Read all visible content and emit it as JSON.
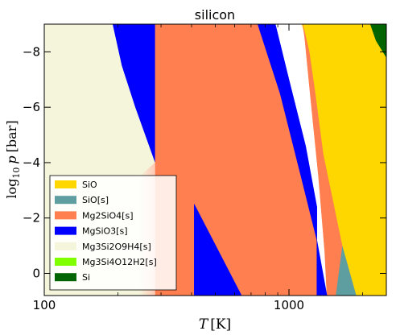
{
  "chart_data": {
    "type": "area",
    "title": "silicon",
    "xlabel": "T [K]",
    "ylabel": "log10 p [bar]",
    "x_scale": "log",
    "xlim": [
      100,
      2500
    ],
    "ylim": [
      0.8,
      -9.0
    ],
    "x_ticks": [
      {
        "value": 100,
        "label": "100"
      },
      {
        "value": 1000,
        "label": "1000"
      }
    ],
    "y_ticks": [
      {
        "value": -8,
        "label": "−8"
      },
      {
        "value": -6,
        "label": "−6"
      },
      {
        "value": -4,
        "label": "−4"
      },
      {
        "value": -2,
        "label": "−2"
      },
      {
        "value": 0,
        "label": "0"
      }
    ],
    "legend_position": "lower-left",
    "series": [
      {
        "name": "SiO",
        "color": "#FFD700"
      },
      {
        "name": "SiO[s]",
        "color": "#5F9EA0"
      },
      {
        "name": "Mg2SiO4[s]",
        "color": "#FF7F50"
      },
      {
        "name": "MgSiO3[s]",
        "color": "#0000FF"
      },
      {
        "name": "Mg3Si2O9H4[s]",
        "color": "#F5F5DC"
      },
      {
        "name": "Mg3Si4O12H2[s]",
        "color": "#7FFF00"
      },
      {
        "name": "Si",
        "color": "#006400"
      }
    ],
    "regions": [
      {
        "series": "SiO",
        "points": [
          [
            1130,
            -9
          ],
          [
            2500,
            -9
          ],
          [
            2500,
            0.8
          ],
          [
            1880,
            0.8
          ],
          [
            1650,
            -1.0
          ],
          [
            1380,
            -4.3
          ],
          [
            1280,
            -6.5
          ],
          [
            1210,
            -8.0
          ]
        ]
      },
      {
        "series": "SiO[s]",
        "points": [
          [
            1550,
            0.8
          ],
          [
            1880,
            0.8
          ],
          [
            1650,
            -1.0
          ]
        ]
      },
      {
        "series": "Mg2SiO4[s]",
        "points": [
          [
            283,
            -9
          ],
          [
            745,
            -9
          ],
          [
            920,
            -6.5
          ],
          [
            1120,
            -3.5
          ],
          [
            1300,
            -1.2
          ],
          [
            1300,
            0.8
          ],
          [
            640,
            0.8
          ],
          [
            410,
            -2.5
          ],
          [
            410,
            0.8
          ],
          [
            283,
            0.8
          ]
        ]
      },
      {
        "series": "Mg2SiO4[s]",
        "points": [
          [
            1140,
            -9
          ],
          [
            1210,
            -8.0
          ],
          [
            1280,
            -6.5
          ],
          [
            1380,
            -4.3
          ],
          [
            1650,
            -1.0
          ],
          [
            1550,
            0.8
          ],
          [
            1430,
            0.8
          ],
          [
            1400,
            -0.8
          ],
          [
            1320,
            -3.5
          ],
          [
            1220,
            -6.5
          ],
          [
            1160,
            -8.5
          ]
        ]
      },
      {
        "series": "MgSiO3[s]",
        "points": [
          [
            190,
            -9
          ],
          [
            283,
            -9
          ],
          [
            283,
            -4.0
          ],
          [
            235,
            -6.0
          ],
          [
            207,
            -7.5
          ]
        ]
      },
      {
        "series": "MgSiO3[s]",
        "points": [
          [
            745,
            -9
          ],
          [
            880,
            -9
          ],
          [
            1000,
            -7.0
          ],
          [
            1170,
            -4.6
          ],
          [
            1300,
            -2.4
          ],
          [
            1300,
            -1.2
          ],
          [
            1120,
            -3.5
          ],
          [
            920,
            -6.5
          ]
        ]
      },
      {
        "series": "MgSiO3[s]",
        "points": [
          [
            410,
            -2.5
          ],
          [
            640,
            0.8
          ],
          [
            410,
            0.8
          ]
        ]
      },
      {
        "series": "MgSiO3[s]",
        "points": [
          [
            1300,
            -1.2
          ],
          [
            1430,
            0.8
          ],
          [
            1300,
            0.8
          ]
        ]
      },
      {
        "series": "Mg3Si2O9H4[s]",
        "points": [
          [
            100,
            -9
          ],
          [
            190,
            -9
          ],
          [
            207,
            -7.5
          ],
          [
            235,
            -6.0
          ],
          [
            283,
            -4.0
          ],
          [
            283,
            0.8
          ],
          [
            100,
            0.8
          ]
        ]
      },
      {
        "series": "Si",
        "points": [
          [
            2150,
            -9
          ],
          [
            2500,
            -9
          ],
          [
            2500,
            -7.8
          ],
          [
            2270,
            -8.4
          ]
        ]
      }
    ],
    "fade_region": {
      "points": [
        [
          245,
          -3.5
        ],
        [
          283,
          -4.0
        ],
        [
          283,
          0.8
        ],
        [
          245,
          0.8
        ]
      ],
      "color": "#FFC8B4"
    }
  }
}
